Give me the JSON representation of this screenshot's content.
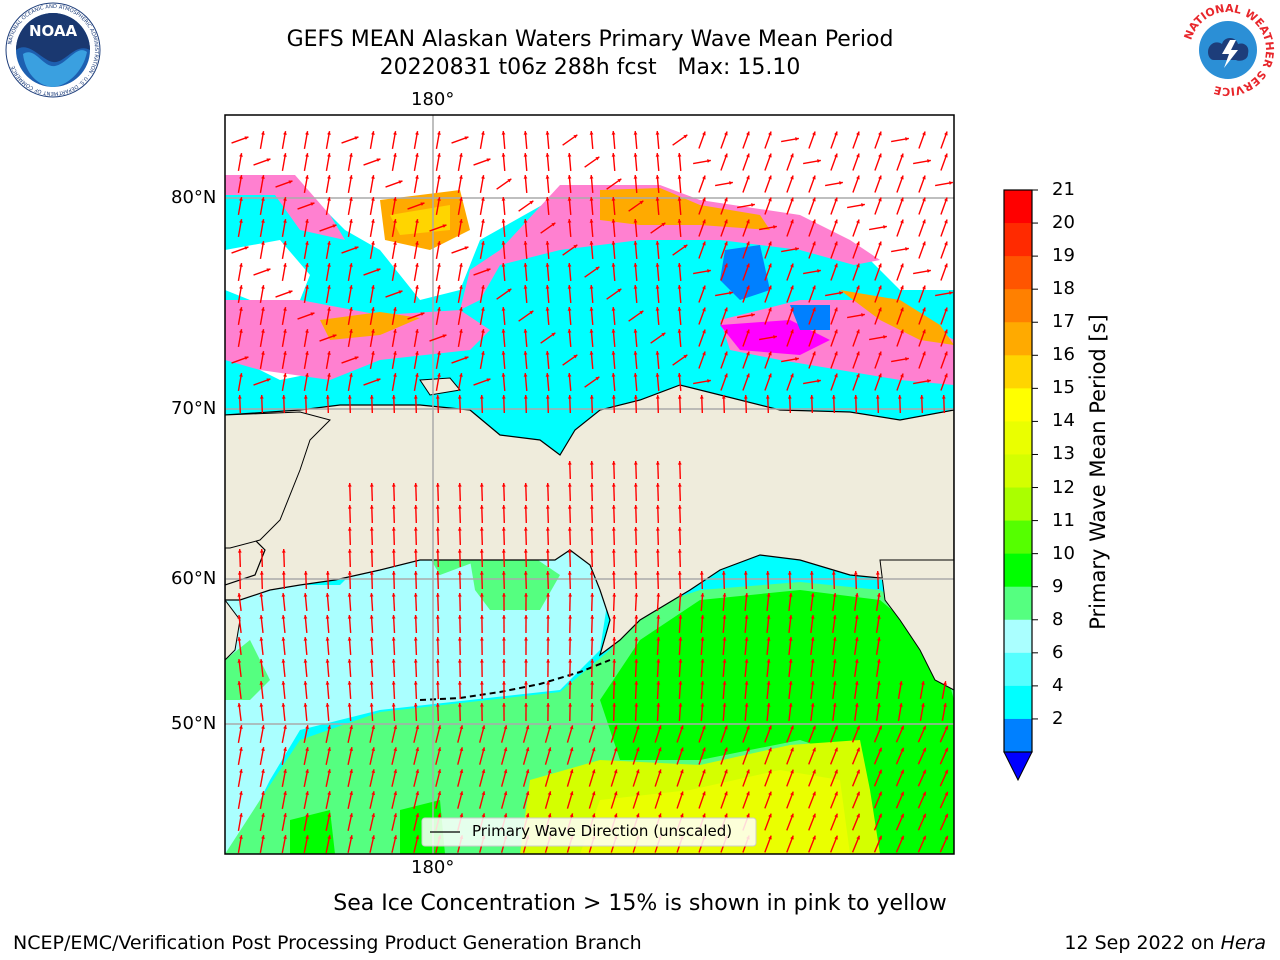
{
  "header": {
    "title_line1": "GEFS MEAN Alaskan Waters Primary Wave Mean Period",
    "title_line2": "20220831 t06z 288h fcst   Max: 15.10",
    "noaa_logo_text": "NOAA",
    "noaa_ring_text": "NATIONAL OCEANIC AND ATMOSPHERIC ADMINISTRATION · U.S. DEPARTMENT OF COMMERCE",
    "nws_ring_text": "NATIONAL WEATHER SERVICE"
  },
  "map": {
    "lon_label_top": "180°",
    "lon_label_bottom": "180°",
    "lat_labels": [
      "80°N",
      "70°N",
      "60°N",
      "50°N"
    ],
    "legend_text": "Primary Wave Direction (unscaled)",
    "colors": {
      "land": "#efecdc",
      "ice_white": "#ffffff",
      "arrow": "#ff0000",
      "grid": "#aaaaaa"
    }
  },
  "colorbar": {
    "label": "Primary Wave Mean Period [s]",
    "ticks": [
      "21",
      "20",
      "19",
      "18",
      "17",
      "16",
      "15",
      "14",
      "13",
      "12",
      "11",
      "10",
      "9",
      "8",
      "6",
      "4",
      "2"
    ],
    "colors": [
      "#ff0000",
      "#ff2a00",
      "#ff5500",
      "#ff8000",
      "#ffaa00",
      "#ffd500",
      "#ffff00",
      "#eaff00",
      "#d4ff00",
      "#aaff00",
      "#55ff00",
      "#00ff00",
      "#55ff80",
      "#aaffff",
      "#55ffff",
      "#00ffff",
      "#0080ff"
    ],
    "under_color": "#0000ff"
  },
  "footer": {
    "caption": "Sea Ice Concentration > 15% is shown in pink to yellow",
    "left": "NCEP/EMC/Verification Post Processing Product Generation Branch",
    "right_prefix": "12 Sep 2022 on ",
    "right_machine": "Hera"
  }
}
